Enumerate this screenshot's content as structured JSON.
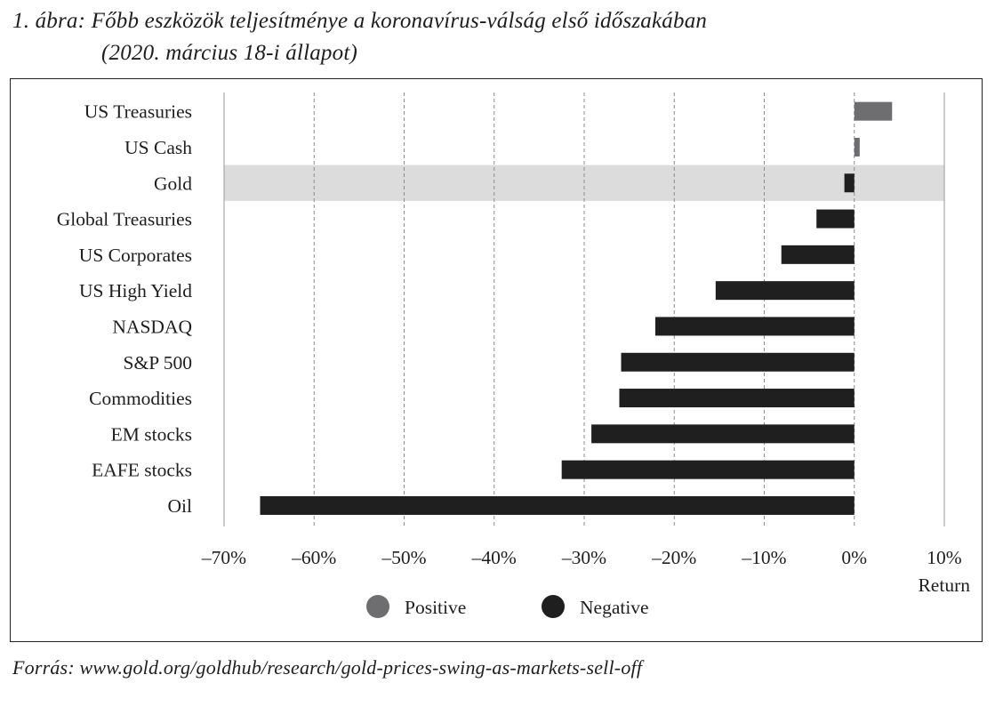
{
  "title": {
    "line1": "1. ábra: Főbb eszközök teljesítménye a koronavírus-válság első időszakában",
    "line2": "(2020. március 18-i állapot)"
  },
  "source": "Forrás: www.gold.org/goldhub/research/gold-prices-swing-as-markets-sell-off",
  "chart_data": {
    "type": "bar",
    "orientation": "horizontal",
    "categories": [
      "US Treasuries",
      "US Cash",
      "Gold",
      "Global Treasuries",
      "US Corporates",
      "US High Yield",
      "NASDAQ",
      "S&P 500",
      "Commodities",
      "EM stocks",
      "EAFE stocks",
      "Oil"
    ],
    "values": [
      4.2,
      0.6,
      -1.1,
      -4.2,
      -8.1,
      -15.4,
      -22.1,
      -25.9,
      -26.1,
      -29.2,
      -32.5,
      -66.0
    ],
    "highlighted_category": "Gold",
    "xlim": [
      -70,
      10
    ],
    "xticks": [
      -70,
      -60,
      -50,
      -40,
      -30,
      -20,
      -10,
      0,
      10
    ],
    "xtick_labels": [
      "–70%",
      "–60%",
      "–50%",
      "–40%",
      "–30%",
      "–20%",
      "–10%",
      "0%",
      "10%"
    ],
    "xlabel": "Return",
    "legend": [
      {
        "name": "Positive",
        "color": "#6e6e70"
      },
      {
        "name": "Negative",
        "color": "#1f1f1f"
      }
    ],
    "grid": "vertical dashed",
    "highlight_color": "#dcdcdc"
  }
}
